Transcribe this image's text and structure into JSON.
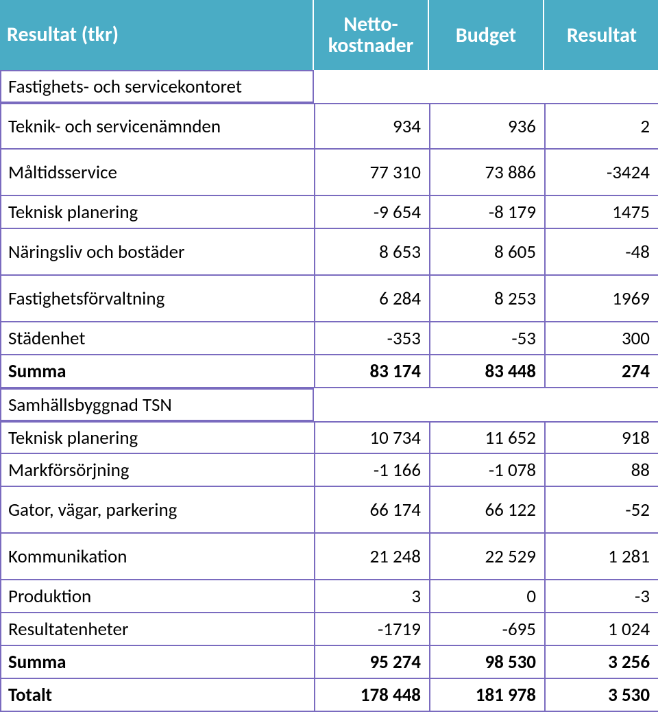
{
  "accent_color": "#4aacc5",
  "border_color": "#7a6bbf",
  "header": {
    "label": "Resultat (tkr)",
    "col_netto_line1": "Netto-",
    "col_netto_line2": "kostnader",
    "col_budget": "Budget",
    "col_resultat": "Resultat"
  },
  "rows": [
    {
      "type": "open",
      "label": "Fastighets- och servicekontoret"
    },
    {
      "type": "boxed",
      "label": "Teknik- och servicenämnden",
      "netto": "934",
      "budget": "936",
      "resultat": "2",
      "tall": true
    },
    {
      "type": "boxed",
      "label": "Måltidsservice",
      "netto": "77 310",
      "budget": "73 886",
      "resultat": "-3424",
      "tall": true
    },
    {
      "type": "boxed",
      "label": "Teknisk planering",
      "netto": "-9 654",
      "budget": "-8 179",
      "resultat": "1475"
    },
    {
      "type": "boxed",
      "label": "Näringsliv och bostäder",
      "netto": "8 653",
      "budget": "8 605",
      "resultat": "-48",
      "tall": true
    },
    {
      "type": "boxed",
      "label": "Fastighetsförvaltning",
      "netto": "6 284",
      "budget": "8 253",
      "resultat": "1969",
      "tall": true
    },
    {
      "type": "boxed",
      "label": "Städenhet",
      "netto": "-353",
      "budget": "-53",
      "resultat": "300"
    },
    {
      "type": "boxed",
      "bold": true,
      "label": "Summa",
      "netto": "83 174",
      "budget": "83 448",
      "resultat": "274"
    },
    {
      "type": "open",
      "label": "Samhällsbyggnad TSN"
    },
    {
      "type": "boxed",
      "label": "Teknisk planering",
      "netto": "10 734",
      "budget": "11 652",
      "resultat": "918"
    },
    {
      "type": "boxed",
      "label": "Markförsörjning",
      "netto": "-1 166",
      "budget": "-1 078",
      "resultat": "88"
    },
    {
      "type": "boxed",
      "label": "Gator, vägar, parkering",
      "netto": "66 174",
      "budget": "66 122",
      "resultat": "-52",
      "tall": true
    },
    {
      "type": "boxed",
      "label": "Kommunikation",
      "netto": "21 248",
      "budget": "22 529",
      "resultat": "1 281",
      "tall": true
    },
    {
      "type": "boxed",
      "label": "Produktion",
      "netto": "3",
      "budget": "0",
      "resultat": "-3"
    },
    {
      "type": "boxed",
      "label": "Resultatenheter",
      "netto": "-1719",
      "budget": "-695",
      "resultat": "1 024"
    },
    {
      "type": "boxed",
      "bold": true,
      "label": "Summa",
      "netto": "95 274",
      "budget": "98 530",
      "resultat": "3 256"
    },
    {
      "type": "boxed",
      "bold": true,
      "label": "Totalt",
      "netto": "178 448",
      "budget": "181 978",
      "resultat": "3 530"
    }
  ]
}
